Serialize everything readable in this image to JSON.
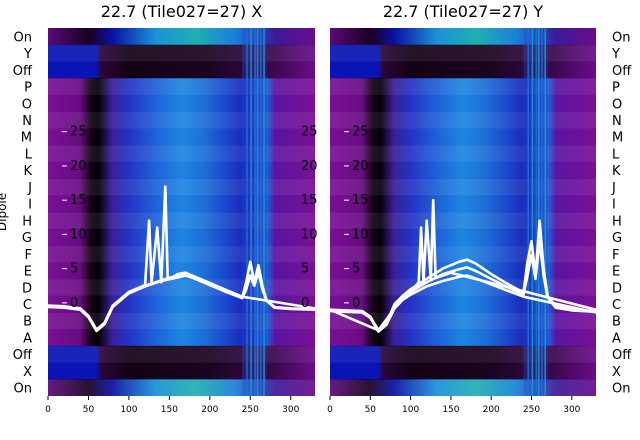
{
  "chart_data": [
    {
      "type": "heatmap",
      "title": "22.7 (Tile027=27) X",
      "ylabel": "Dipole",
      "row_labels": [
        "On",
        "Y",
        "Off",
        "P",
        "O",
        "N",
        "M",
        "L",
        "K",
        "J",
        "I",
        "H",
        "G",
        "F",
        "E",
        "D",
        "C",
        "B",
        "A",
        "Off",
        "X",
        "On"
      ],
      "xticks": [
        0,
        50,
        100,
        150,
        200,
        250,
        300
      ],
      "xlim": [
        0,
        330
      ],
      "overlay_ticks": [
        0,
        5,
        10,
        15,
        20,
        25
      ],
      "overlay_ylim": [
        -5,
        27.5
      ],
      "overlay_series": [
        {
          "x": [
            0,
            20,
            40,
            50,
            60,
            70,
            80,
            90,
            100,
            120,
            140,
            160,
            170,
            180,
            200,
            220,
            240,
            245,
            250,
            255,
            260,
            265,
            270,
            280,
            300,
            330
          ],
          "y": [
            -0.5,
            -0.6,
            -0.9,
            -2,
            -4,
            -3,
            -0.5,
            0.5,
            1.5,
            2.5,
            3.3,
            4,
            4.3,
            3.8,
            2.8,
            1.8,
            0.8,
            3,
            6,
            3,
            5.5,
            2.5,
            0.4,
            -0.6,
            -0.8,
            -0.9
          ]
        },
        {
          "x": [
            0,
            20,
            40,
            50,
            60,
            70,
            80,
            90,
            100,
            120,
            140,
            160,
            170,
            180,
            200,
            220,
            240,
            245,
            250,
            255,
            260,
            265,
            270,
            280,
            300,
            330
          ],
          "y": [
            -0.6,
            -0.7,
            -1,
            -2.1,
            -4.1,
            -3.1,
            -0.6,
            0.4,
            1.4,
            2.4,
            3.2,
            3.7,
            4,
            3.6,
            2.6,
            1.6,
            0.7,
            2,
            4,
            2.5,
            4.5,
            2,
            0.3,
            -0.7,
            -0.9,
            -1
          ]
        },
        {
          "x": [
            0,
            20,
            40,
            50,
            60,
            70,
            80,
            90,
            100,
            120,
            125,
            128,
            135,
            140,
            145,
            148,
            155,
            160,
            170,
            180,
            200,
            220,
            240,
            330
          ],
          "y": [
            -0.4,
            -0.5,
            -0.8,
            -1.9,
            -3.9,
            -2.9,
            -0.4,
            0.6,
            1.6,
            2.6,
            12,
            3,
            11,
            3,
            17,
            3.5,
            3.8,
            4.2,
            4.4,
            3.9,
            2.9,
            1.9,
            0.9,
            -0.8
          ]
        }
      ]
    },
    {
      "type": "heatmap",
      "title": "22.7 (Tile027=27) Y",
      "ylabel": "Dipole",
      "row_labels": [
        "On",
        "Y",
        "Off",
        "P",
        "O",
        "N",
        "M",
        "L",
        "K",
        "J",
        "I",
        "H",
        "G",
        "F",
        "E",
        "D",
        "C",
        "B",
        "A",
        "Off",
        "X",
        "On"
      ],
      "xticks": [
        0,
        50,
        100,
        150,
        200,
        250,
        300
      ],
      "xlim": [
        0,
        330
      ],
      "overlay_ticks": [
        0,
        5,
        10,
        15,
        20,
        25
      ],
      "overlay_ylim": [
        -5,
        27.5
      ],
      "overlay_series": [
        {
          "x": [
            0,
            20,
            40,
            50,
            60,
            70,
            80,
            90,
            100,
            120,
            140,
            160,
            170,
            180,
            200,
            220,
            240,
            245,
            250,
            255,
            260,
            265,
            270,
            280,
            300,
            330
          ],
          "y": [
            -1,
            -1.1,
            -1.2,
            -2,
            -4,
            -3,
            -0.2,
            1,
            2,
            3.5,
            5,
            6,
            6.3,
            5.8,
            4.2,
            2.8,
            1.5,
            6,
            9,
            4,
            12,
            5,
            1,
            -0.5,
            -1,
            -1.2
          ]
        },
        {
          "x": [
            0,
            20,
            40,
            50,
            60,
            70,
            80,
            90,
            100,
            120,
            140,
            160,
            170,
            180,
            200,
            220,
            240,
            245,
            250,
            255,
            260,
            265,
            270,
            280,
            300,
            330
          ],
          "y": [
            -1.1,
            -1.2,
            -1.3,
            -2.1,
            -4.1,
            -3.1,
            -0.5,
            0.7,
            1.6,
            3,
            4.2,
            4.9,
            5.2,
            4.7,
            3.5,
            2.3,
            1.2,
            4,
            7,
            3.5,
            9,
            4,
            0.8,
            -0.7,
            -1.1,
            -1.3
          ]
        },
        {
          "x": [
            0,
            20,
            40,
            50,
            60,
            70,
            80,
            90,
            100,
            120,
            140,
            160,
            170,
            180,
            200,
            220,
            240,
            330
          ],
          "y": [
            -1.2,
            -1.3,
            -1.4,
            -2.2,
            -4.2,
            -3.2,
            -0.8,
            0.4,
            1.2,
            2.4,
            3.2,
            3.8,
            4,
            3.6,
            2.7,
            1.8,
            0.9,
            -1.4
          ]
        },
        {
          "x": [
            0,
            60,
            80,
            90,
            100,
            110,
            113,
            116,
            120,
            125,
            128,
            131,
            135,
            140,
            145,
            150,
            330
          ],
          "y": [
            -1,
            -4,
            -0.8,
            0.5,
            1.5,
            3,
            11,
            3,
            12,
            3.5,
            15,
            3.6,
            3.8,
            4,
            4.2,
            4.4,
            -1
          ]
        }
      ]
    }
  ]
}
